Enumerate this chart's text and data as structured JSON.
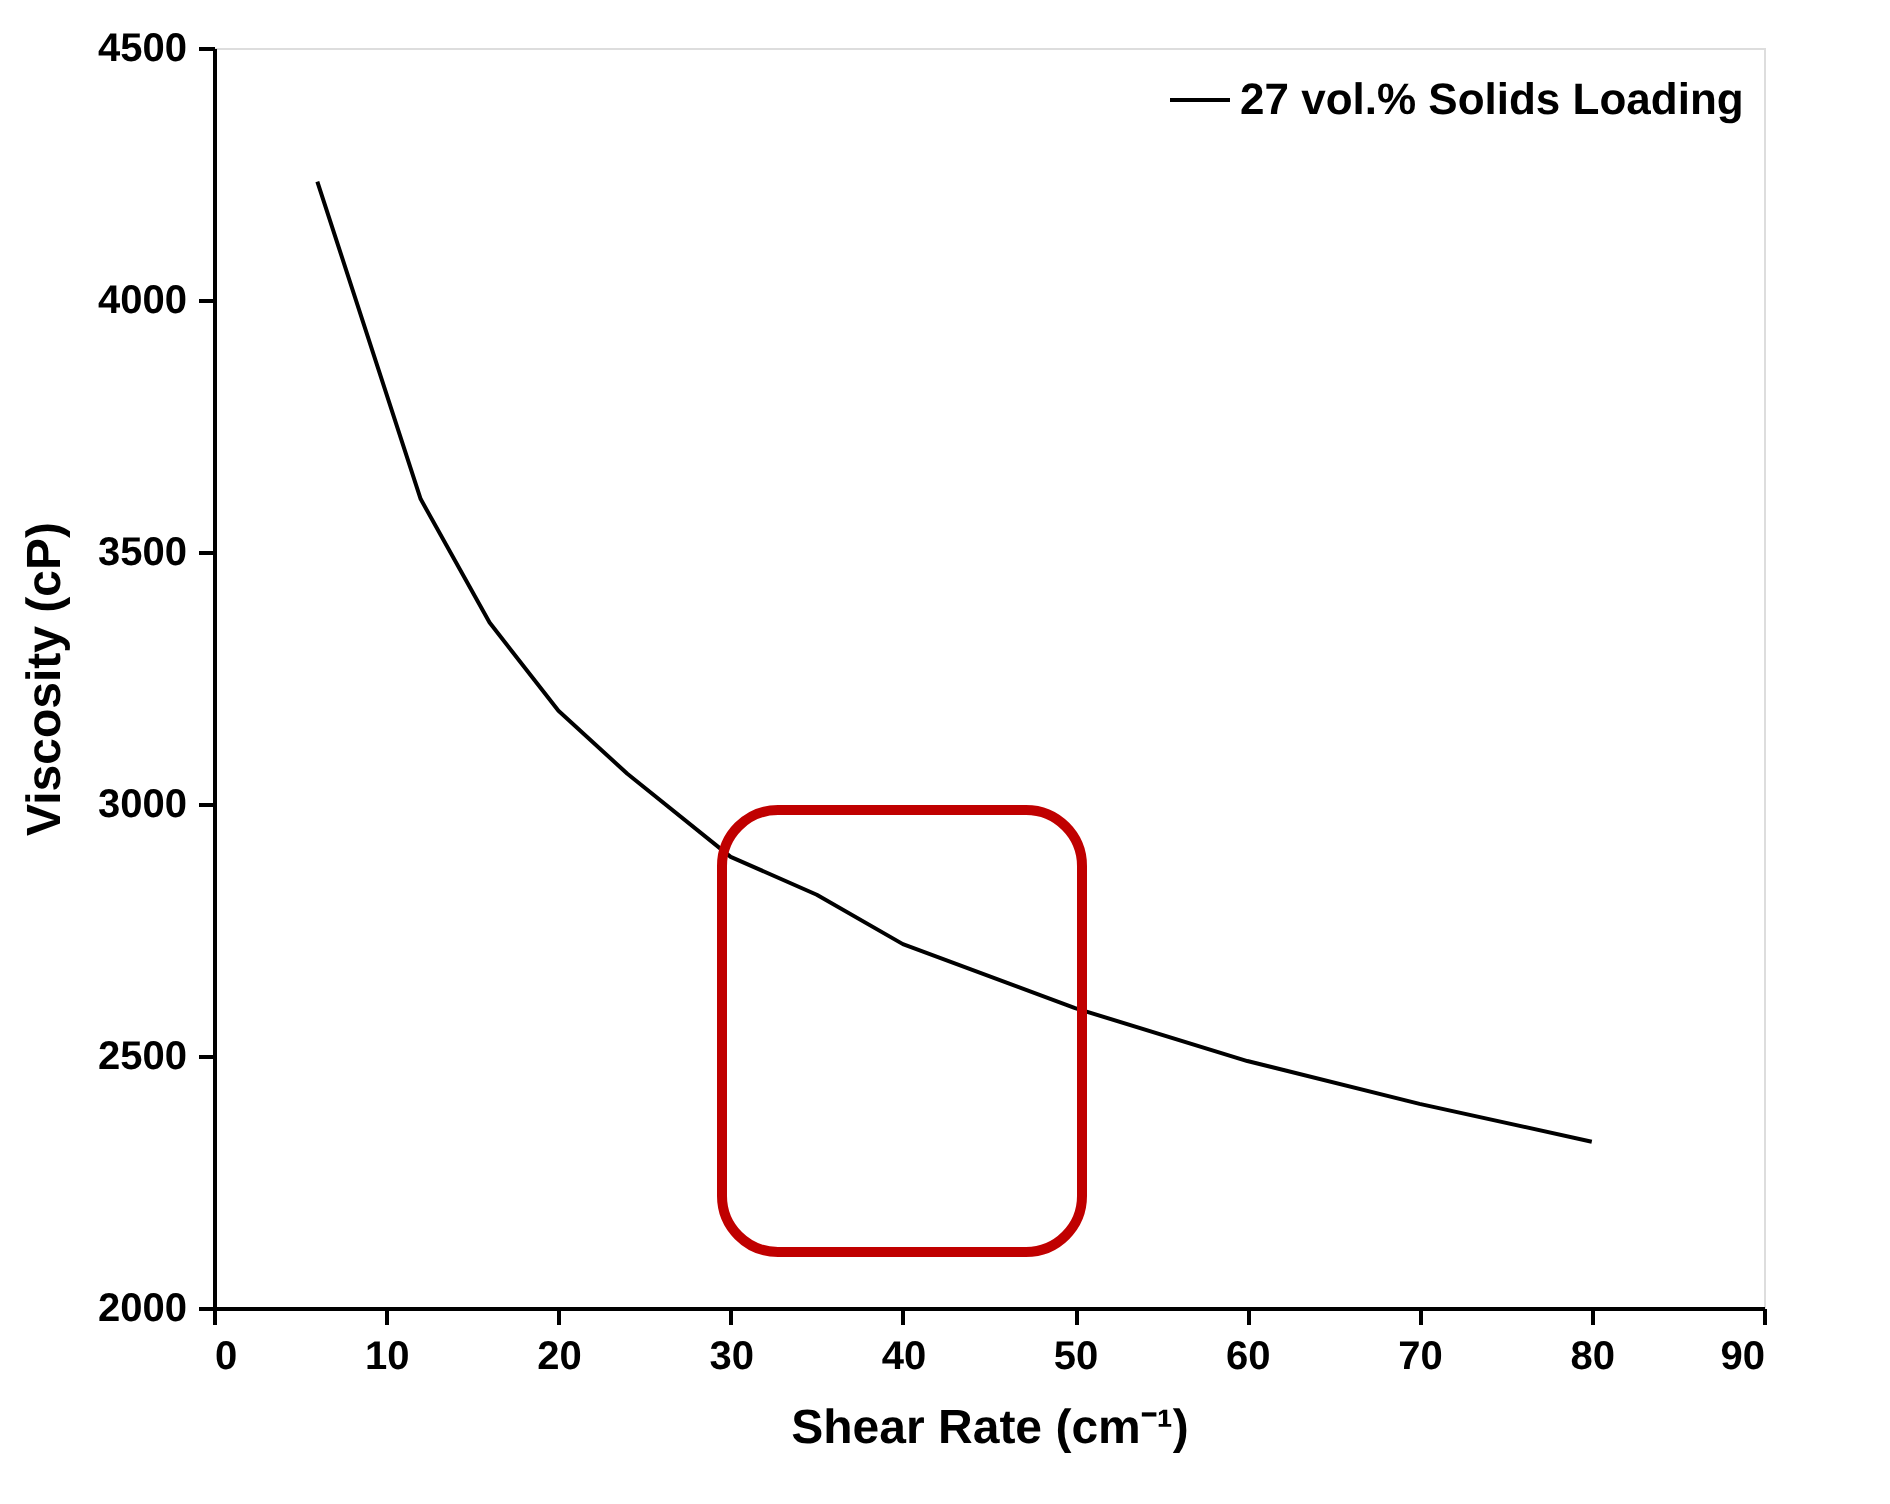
{
  "chart_data": {
    "type": "line",
    "xlabel": "Shear Rate (cm⁻¹)",
    "ylabel": "Viscosity (cP)",
    "xlim": [
      0,
      90
    ],
    "xticks": [
      0,
      10,
      20,
      30,
      40,
      50,
      60,
      70,
      80,
      90
    ],
    "ylim": [
      2000,
      4500
    ],
    "yticks": [
      2000,
      2500,
      3000,
      3500,
      4000,
      4500
    ],
    "grid": false,
    "legend": "top right",
    "marker": "none",
    "line_style": "solid",
    "series": [
      {
        "name": "27 vol.% Solids Loading",
        "color": "#000000",
        "x": [
          6,
          12,
          16,
          20,
          24,
          30,
          35,
          40,
          50,
          60,
          70,
          80
        ],
        "values": [
          4235,
          3605,
          3360,
          3185,
          3060,
          2895,
          2820,
          2722,
          2595,
          2490,
          2405,
          2330
        ]
      }
    ]
  }
}
